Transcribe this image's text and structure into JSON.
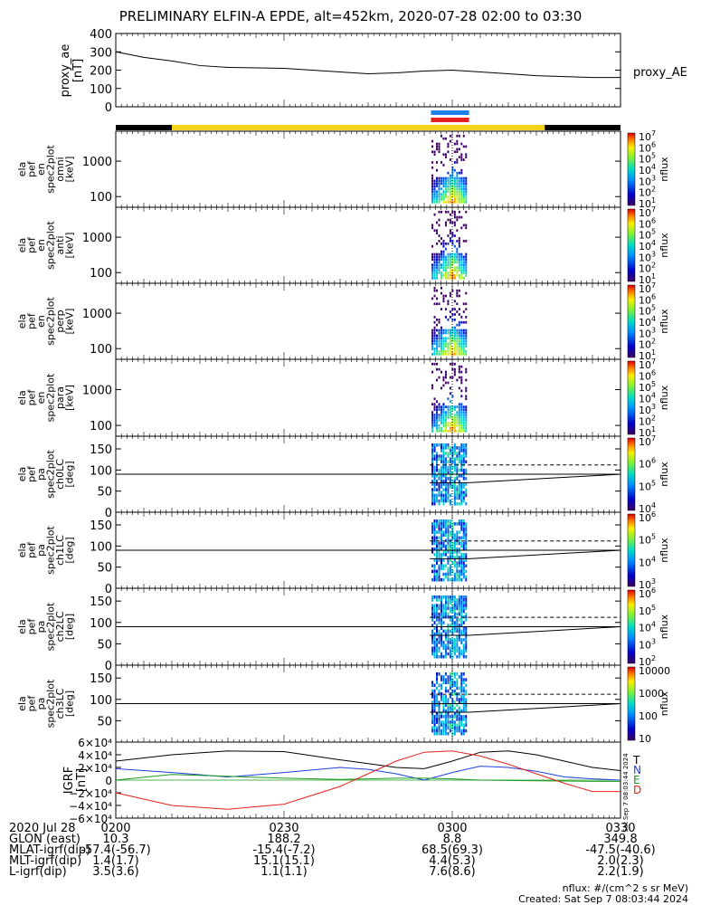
{
  "title": "PRELIMINARY ELFIN-A EPDE, alt=452km, 2020-07-28 02:00 to 03:30",
  "colors": {
    "yellow_bar": "#f4d21a",
    "black_bar": "#000000",
    "blue_mark": "#1f7fe8",
    "red_mark": "#e8201c"
  },
  "time_axis": {
    "labels_row": "2020 Jul 28",
    "ticks": [
      "0200",
      "0230",
      "0300",
      "0330"
    ],
    "tick_minutes": [
      0,
      30,
      60,
      90
    ],
    "range_minutes": [
      0,
      90
    ]
  },
  "ephemeris": {
    "rows": [
      "GLON (east)",
      "MLAT-igrf(dip)",
      "MLT-igrf(dip)",
      "L-igrf(dip)"
    ],
    "values": [
      [
        "10.3",
        "188.2",
        "8.8",
        "349.8"
      ],
      [
        "-57.4(-56.7)",
        "-15.4(-7.2)",
        "68.5(69.3)",
        "-47.5(-40.6)"
      ],
      [
        "1.4(1.7)",
        "15.1(15.1)",
        "4.4(5.3)",
        "2.0(2.3)"
      ],
      [
        "3.5(3.6)",
        "1.1(1.1)",
        "7.6(8.6)",
        "2.2(1.9)"
      ]
    ]
  },
  "footer": {
    "units": "nflux: #/(cm^2 s sr MeV)",
    "created": "Created: Sat Sep  7 08:03:44 2024"
  },
  "side_stamp": "Sat Sep  7 08:03:44 2024",
  "chart_data": [
    {
      "type": "line",
      "panel": "proxy_ae",
      "ylabel": "proxy_ae\n[nT]",
      "legend": "proxy_AE",
      "ylim": [
        0,
        400
      ],
      "yticks": [
        "400",
        "300",
        "200",
        "100",
        "0"
      ],
      "x_minutes": [
        0,
        5,
        10,
        15,
        20,
        30,
        40,
        45,
        50,
        55,
        60,
        65,
        70,
        75,
        80,
        85,
        90
      ],
      "values": [
        300,
        270,
        250,
        225,
        215,
        210,
        190,
        180,
        185,
        195,
        200,
        190,
        180,
        170,
        165,
        160,
        160
      ]
    },
    {
      "type": "heatmap",
      "panel": "en_omni",
      "ylabel": "ela\npef\nen\nspec2plot\nomni\n[keV]",
      "yticks": [
        "1000",
        "100"
      ],
      "ylog": [
        50,
        7000
      ],
      "clabel": "nflux",
      "cticks": [
        "10^7",
        "10^6",
        "10^5",
        "10^4",
        "10^3",
        "10^2",
        "10^1"
      ]
    },
    {
      "type": "heatmap",
      "panel": "en_anti",
      "ylabel": "ela\npef\nen\nspec2plot\nanti\n[keV]",
      "yticks": [
        "1000",
        "100"
      ],
      "ylog": [
        50,
        7000
      ],
      "clabel": "nflux",
      "cticks": [
        "10^7",
        "10^6",
        "10^5",
        "10^4",
        "10^3",
        "10^2",
        "10^1"
      ]
    },
    {
      "type": "heatmap",
      "panel": "en_perp",
      "ylabel": "ela\npef\nen\nspec2plot\nperp\n[keV]",
      "yticks": [
        "1000",
        "100"
      ],
      "ylog": [
        50,
        7000
      ],
      "clabel": "nflux",
      "cticks": [
        "10^7",
        "10^6",
        "10^5",
        "10^4",
        "10^3",
        "10^2",
        "10^1"
      ]
    },
    {
      "type": "heatmap",
      "panel": "en_para",
      "ylabel": "ela\npef\nen\nspec2plot\npara\n[keV]",
      "yticks": [
        "1000",
        "100"
      ],
      "ylog": [
        50,
        7000
      ],
      "clabel": "nflux",
      "cticks": [
        "10^7",
        "10^6",
        "10^5",
        "10^4",
        "10^3",
        "10^2",
        "10^1"
      ]
    },
    {
      "type": "heatmap",
      "panel": "pa_ch0",
      "ylabel": "ela\npef\npa\nspec2plot\nch0LC\n[deg]",
      "yticks": [
        "150",
        "100",
        "50",
        "0"
      ],
      "ylim": [
        0,
        180
      ],
      "clabel": "nflux",
      "cticks": [
        "10^7",
        "10^6",
        "10^5",
        "10^4"
      ]
    },
    {
      "type": "heatmap",
      "panel": "pa_ch1",
      "ylabel": "ela\npef\npa\nspec2plot\nch1LC\n[deg]",
      "yticks": [
        "150",
        "100",
        "50",
        "0"
      ],
      "ylim": [
        0,
        180
      ],
      "clabel": "nflux",
      "cticks": [
        "10^6",
        "10^5",
        "10^4",
        "10^3"
      ]
    },
    {
      "type": "heatmap",
      "panel": "pa_ch2",
      "ylabel": "ela\npef\npa\nspec2plot\nch2LC\n[deg]",
      "yticks": [
        "150",
        "100",
        "50",
        "0"
      ],
      "ylim": [
        0,
        180
      ],
      "clabel": "nflux",
      "cticks": [
        "10^6",
        "10^5",
        "10^4",
        "10^3",
        "10^2"
      ]
    },
    {
      "type": "heatmap",
      "panel": "pa_ch3",
      "ylabel": "ela\npef\npa\nspec2plot\nch3LC\n[deg]",
      "yticks": [
        "150",
        "100",
        "50"
      ],
      "ylim": [
        0,
        180
      ],
      "clabel": "nflux",
      "cticks": [
        "10000",
        "1000",
        "100",
        "10"
      ]
    },
    {
      "type": "line",
      "panel": "igrf",
      "ylabel": "IGRF\n[nT]",
      "ylim": [
        -60000,
        60000
      ],
      "yticks": [
        "6×10⁴",
        "4×10⁴",
        "2×10⁴",
        "0",
        "−2×10⁴",
        "−4×10⁴",
        "−6×10⁴"
      ],
      "legend": [
        "T",
        "N",
        "E",
        "D"
      ],
      "series": [
        {
          "name": "T",
          "color": "#000000",
          "x_minutes": [
            0,
            10,
            20,
            30,
            40,
            45,
            50,
            55,
            60,
            65,
            70,
            75,
            80,
            85,
            90
          ],
          "values": [
            30000,
            40000,
            46000,
            45000,
            32000,
            26000,
            20000,
            18000,
            30000,
            44000,
            46000,
            40000,
            30000,
            20000,
            15000
          ]
        },
        {
          "name": "N",
          "color": "#1f3fe0",
          "x_minutes": [
            0,
            10,
            20,
            30,
            40,
            45,
            50,
            55,
            60,
            65,
            70,
            75,
            80,
            85,
            90
          ],
          "values": [
            18000,
            12000,
            5000,
            12000,
            20000,
            17000,
            10000,
            0,
            12000,
            22000,
            20000,
            14000,
            5000,
            2000,
            0
          ]
        },
        {
          "name": "E",
          "color": "#1a9a1a",
          "x_minutes": [
            0,
            10,
            20,
            30,
            40,
            45,
            50,
            55,
            60,
            65,
            70,
            75,
            80,
            85,
            90
          ],
          "values": [
            0,
            9000,
            6000,
            3000,
            1000,
            2000,
            3000,
            3000,
            2000,
            0,
            -500,
            -1000,
            -1500,
            -2000,
            -2000
          ]
        },
        {
          "name": "D",
          "color": "#e8201c",
          "x_minutes": [
            0,
            10,
            20,
            30,
            40,
            45,
            50,
            55,
            60,
            65,
            70,
            75,
            80,
            85,
            90
          ],
          "values": [
            -20000,
            -40000,
            -46000,
            -38000,
            -10000,
            10000,
            30000,
            44000,
            46000,
            38000,
            25000,
            10000,
            -5000,
            -18000,
            -18000
          ]
        }
      ]
    }
  ]
}
